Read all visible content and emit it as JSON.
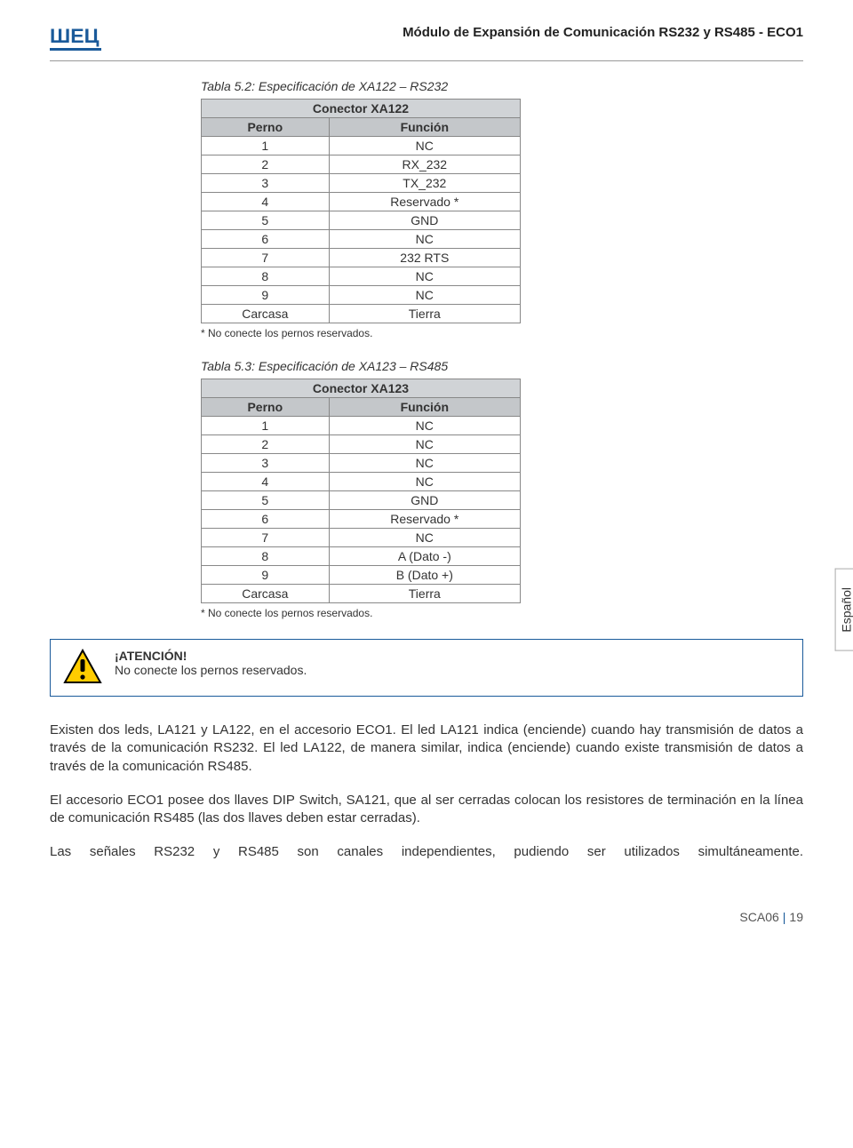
{
  "header": {
    "doc_title": "Módulo de Expansión de Comunicación RS232 y RS485 - ECO1"
  },
  "side_tab": "Español",
  "table1": {
    "caption": "Tabla 5.2: Especificación de XA122 – RS232",
    "title": "Conector XA122",
    "col_perno": "Perno",
    "col_funcion": "Función",
    "rows": [
      {
        "p": "1",
        "f": "NC"
      },
      {
        "p": "2",
        "f": "RX_232"
      },
      {
        "p": "3",
        "f": "TX_232"
      },
      {
        "p": "4",
        "f": "Reservado *"
      },
      {
        "p": "5",
        "f": "GND"
      },
      {
        "p": "6",
        "f": "NC"
      },
      {
        "p": "7",
        "f": "232 RTS"
      },
      {
        "p": "8",
        "f": "NC"
      },
      {
        "p": "9",
        "f": "NC"
      },
      {
        "p": "Carcasa",
        "f": "Tierra"
      }
    ],
    "footnote": "* No conecte los pernos reservados."
  },
  "table2": {
    "caption": "Tabla 5.3: Especificación de XA123 – RS485",
    "title": "Conector XA123",
    "col_perno": "Perno",
    "col_funcion": "Función",
    "rows": [
      {
        "p": "1",
        "f": "NC"
      },
      {
        "p": "2",
        "f": "NC"
      },
      {
        "p": "3",
        "f": "NC"
      },
      {
        "p": "4",
        "f": "NC"
      },
      {
        "p": "5",
        "f": "GND"
      },
      {
        "p": "6",
        "f": "Reservado *"
      },
      {
        "p": "7",
        "f": "NC"
      },
      {
        "p": "8",
        "f": "A (Dato -)"
      },
      {
        "p": "9",
        "f": "B (Dato +)"
      },
      {
        "p": "Carcasa",
        "f": "Tierra"
      }
    ],
    "footnote": "* No conecte los pernos reservados."
  },
  "warning": {
    "title": "¡ATENCIÓN!",
    "text": "No conecte los pernos reservados."
  },
  "paragraphs": {
    "p1": "Existen dos leds, LA121 y LA122, en el accesorio ECO1. El led LA121 indica (enciende) cuando hay transmisión de datos a través de la comunicación RS232. El led LA122, de manera similar, indica (enciende) cuando existe transmisión de datos a través de la comunicación RS485.",
    "p2": "El accesorio ECO1 posee dos llaves DIP Switch, SA121, que al ser cerradas colocan los resistores de terminación en la línea de comunicación RS485 (las dos llaves deben estar cerradas).",
    "p3": "Las señales RS232 y RS485 son canales independientes, pudiendo ser utilizados simultáneamente."
  },
  "footer": {
    "doc_code": "SCA06",
    "page": "19"
  },
  "colors": {
    "brand_blue": "#1a5a9a",
    "table_header_bg": "#c4c7ca",
    "table_title_bg": "#d0d3d6",
    "warn_yellow": "#ffcc00"
  }
}
